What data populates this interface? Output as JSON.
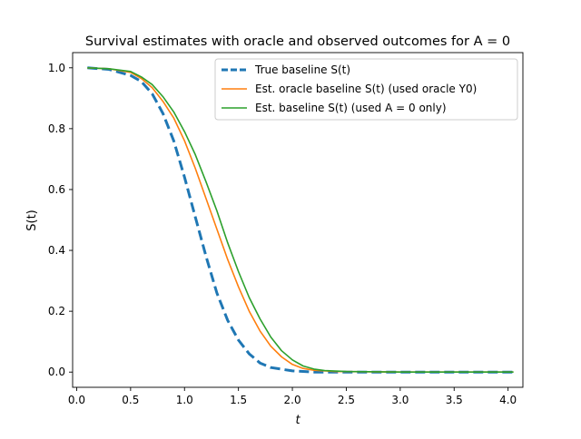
{
  "chart_data": {
    "type": "line",
    "title": "Survival estimates with oracle and observed outcomes for A = 0",
    "xlabel": "t",
    "ylabel": "S(t)",
    "xlim": [
      -0.0375,
      4.1375
    ],
    "ylim": [
      -0.05,
      1.05
    ],
    "xticks": [
      0.0,
      0.5,
      1.0,
      1.5,
      2.0,
      2.5,
      3.0,
      3.5,
      4.0
    ],
    "xtick_labels": [
      "0.0",
      "0.5",
      "1.0",
      "1.5",
      "2.0",
      "2.5",
      "3.0",
      "3.5",
      "4.0"
    ],
    "yticks": [
      0.0,
      0.2,
      0.4,
      0.6,
      0.8,
      1.0
    ],
    "ytick_labels": [
      "0.0",
      "0.2",
      "0.4",
      "0.6",
      "0.8",
      "1.0"
    ],
    "grid": false,
    "legend_position": "upper right",
    "series": [
      {
        "name": "True baseline S(t)",
        "color": "#1f77b4",
        "style": "dashed",
        "x": [
          0.1,
          0.3,
          0.5,
          0.6,
          0.7,
          0.8,
          0.9,
          1.0,
          1.1,
          1.2,
          1.3,
          1.4,
          1.5,
          1.6,
          1.7,
          1.8,
          2.0,
          2.2,
          2.5,
          3.0,
          3.5,
          4.05
        ],
        "y": [
          1.0,
          0.995,
          0.975,
          0.955,
          0.915,
          0.85,
          0.76,
          0.64,
          0.51,
          0.38,
          0.26,
          0.17,
          0.105,
          0.06,
          0.03,
          0.015,
          0.004,
          0.0,
          0.0,
          0.0,
          0.0,
          0.0
        ]
      },
      {
        "name": "Est. oracle baseline S(t) (used oracle Y0)",
        "color": "#ff7f0e",
        "style": "solid",
        "x": [
          0.1,
          0.3,
          0.5,
          0.6,
          0.7,
          0.8,
          0.9,
          1.0,
          1.1,
          1.2,
          1.3,
          1.4,
          1.5,
          1.6,
          1.7,
          1.8,
          1.9,
          2.0,
          2.1,
          2.2,
          2.4,
          3.0,
          3.5,
          4.05
        ],
        "y": [
          1.0,
          0.997,
          0.985,
          0.965,
          0.935,
          0.89,
          0.835,
          0.76,
          0.67,
          0.57,
          0.47,
          0.37,
          0.28,
          0.2,
          0.135,
          0.085,
          0.05,
          0.025,
          0.012,
          0.006,
          0.002,
          0.0,
          0.0,
          0.0
        ]
      },
      {
        "name": "Est. baseline S(t) (used A = 0 only)",
        "color": "#2ca02c",
        "style": "solid",
        "x": [
          0.1,
          0.3,
          0.5,
          0.6,
          0.7,
          0.8,
          0.9,
          1.0,
          1.1,
          1.2,
          1.3,
          1.4,
          1.5,
          1.6,
          1.7,
          1.8,
          1.9,
          2.0,
          2.1,
          2.2,
          2.3,
          2.5,
          3.0,
          3.5,
          4.05
        ],
        "y": [
          1.0,
          0.997,
          0.988,
          0.97,
          0.945,
          0.905,
          0.855,
          0.79,
          0.715,
          0.625,
          0.53,
          0.425,
          0.33,
          0.245,
          0.175,
          0.115,
          0.07,
          0.04,
          0.02,
          0.01,
          0.005,
          0.002,
          0.0,
          0.0,
          0.0
        ]
      }
    ]
  }
}
